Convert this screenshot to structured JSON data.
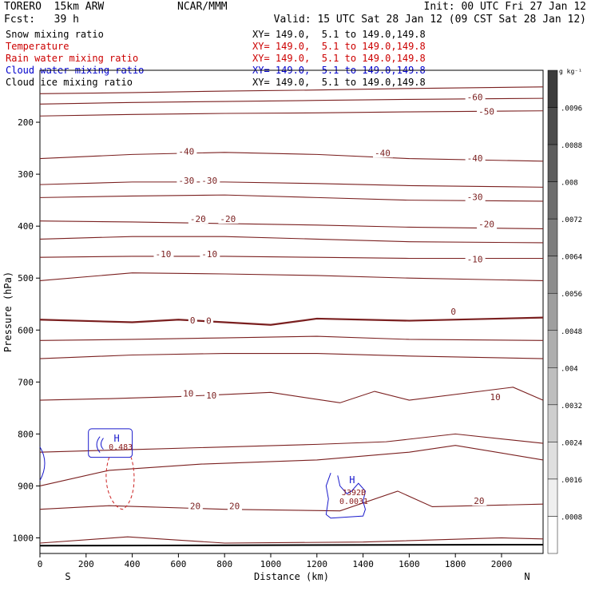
{
  "header": {
    "model": "TORERO  15km ARW",
    "center": "NCAR/MMM",
    "init": "Init: 00 UTC Fri 27 Jan 12",
    "fcst": "Fcst:   39 h",
    "valid": "Valid: 15 UTC Sat 28 Jan 12 (09 CST Sat 28 Jan 12)"
  },
  "legend": [
    {
      "name": "Snow mixing ratio",
      "color": "#000000",
      "xy": "XY= 149.0,  5.1 to 149.0,149.8"
    },
    {
      "name": "Temperature",
      "color": "#cc0000",
      "xy": "XY= 149.0,  5.1 to 149.0,149.8"
    },
    {
      "name": "Rain water mixing ratio",
      "color": "#cc0000",
      "xy": "XY= 149.0,  5.1 to 149.0,149.8"
    },
    {
      "name": "Cloud water mixing ratio",
      "color": "#0000cc",
      "xy": "XY= 149.0,  5.1 to 149.0,149.8"
    },
    {
      "name": "Cloud ice mixing ratio",
      "color": "#000000",
      "xy": "XY= 149.0,  5.1 to 149.0,149.8"
    }
  ],
  "chart_data": {
    "type": "line",
    "xlabel": "Distance (km)",
    "ylabel": "Pressure (hPa)",
    "xlim": [
      0,
      2180
    ],
    "ylim": [
      1030,
      100
    ],
    "x_ticks": [
      0,
      200,
      400,
      600,
      800,
      1000,
      1200,
      1400,
      1600,
      1800,
      2000
    ],
    "y_ticks": [
      200,
      300,
      400,
      500,
      600,
      700,
      800,
      900,
      1000
    ],
    "end_labels": {
      "left": "S",
      "right": "N"
    },
    "colorbar": {
      "unit": "g kg⁻¹",
      "ticks": [
        ".0096",
        ".0088",
        ".008",
        ".0072",
        ".0064",
        ".0056",
        ".0048",
        ".004",
        ".0032",
        ".0024",
        ".0016",
        ".0008"
      ]
    },
    "isotherms": [
      {
        "temp": -60,
        "x": [
          0,
          400,
          800,
          1200,
          1600,
          2180
        ],
        "p": [
          145,
          143,
          140,
          138,
          135,
          132
        ]
      },
      {
        "temp": -50,
        "x": [
          0,
          400,
          800,
          1200,
          1600,
          2180
        ],
        "p": [
          165,
          162,
          160,
          158,
          156,
          154
        ]
      },
      {
        "temp": -50,
        "x": [
          0,
          400,
          800,
          1200,
          1600,
          2180
        ],
        "p": [
          188,
          185,
          183,
          182,
          180,
          178
        ]
      },
      {
        "temp": -40,
        "x": [
          0,
          400,
          800,
          1200,
          1600,
          2180
        ],
        "p": [
          270,
          262,
          258,
          262,
          270,
          275
        ]
      },
      {
        "temp": -30,
        "x": [
          0,
          400,
          800,
          1200,
          1600,
          2180
        ],
        "p": [
          320,
          315,
          315,
          318,
          322,
          325
        ]
      },
      {
        "temp": -30,
        "x": [
          0,
          400,
          800,
          1200,
          1600,
          2180
        ],
        "p": [
          345,
          342,
          340,
          345,
          350,
          352
        ]
      },
      {
        "temp": -20,
        "x": [
          0,
          400,
          800,
          1200,
          1600,
          2180
        ],
        "p": [
          390,
          392,
          395,
          398,
          402,
          405
        ]
      },
      {
        "temp": -20,
        "x": [
          0,
          400,
          800,
          1200,
          1600,
          2180
        ],
        "p": [
          425,
          420,
          420,
          425,
          430,
          432
        ]
      },
      {
        "temp": -10,
        "x": [
          0,
          400,
          800,
          1200,
          1600,
          2180
        ],
        "p": [
          460,
          458,
          458,
          460,
          462,
          462
        ]
      },
      {
        "temp": -10,
        "x": [
          0,
          400,
          800,
          1200,
          1600,
          2180
        ],
        "p": [
          505,
          490,
          492,
          495,
          500,
          505
        ]
      },
      {
        "temp": 0,
        "x": [
          0,
          400,
          600,
          1000,
          1200,
          1600,
          2180
        ],
        "p": [
          580,
          585,
          580,
          590,
          578,
          582,
          576
        ]
      },
      {
        "temp": 0,
        "x": [
          0,
          400,
          800,
          1200,
          1600,
          2180
        ],
        "p": [
          620,
          618,
          615,
          612,
          618,
          620
        ]
      },
      {
        "temp": 0,
        "x": [
          0,
          400,
          800,
          1200,
          1600,
          2180
        ],
        "p": [
          655,
          648,
          645,
          645,
          650,
          655
        ]
      },
      {
        "temp": 10,
        "x": [
          0,
          300,
          600,
          1000,
          1300,
          1450,
          1600,
          2050,
          2180
        ],
        "p": [
          735,
          732,
          728,
          720,
          740,
          718,
          735,
          710,
          735
        ]
      },
      {
        "temp": 10,
        "x": [
          0,
          400,
          800,
          1200,
          1500,
          1800,
          2180
        ],
        "p": [
          835,
          830,
          825,
          820,
          815,
          800,
          818
        ]
      },
      {
        "temp": 20,
        "x": [
          0,
          300,
          700,
          1200,
          1600,
          1800,
          2180
        ],
        "p": [
          900,
          870,
          858,
          850,
          835,
          822,
          850
        ]
      },
      {
        "temp": 20,
        "x": [
          0,
          300,
          800,
          1300,
          1550,
          1700,
          2180
        ],
        "p": [
          945,
          938,
          945,
          948,
          910,
          940,
          935
        ]
      },
      {
        "temp": 20,
        "x": [
          0,
          380,
          800,
          1400,
          2000,
          2180
        ],
        "p": [
          1010,
          998,
          1010,
          1008,
          1000,
          1002
        ]
      }
    ],
    "cloud_water_centers": [
      {
        "x": 320,
        "p": 815,
        "label": "H"
      },
      {
        "x": 1340,
        "p": 895,
        "label": "H"
      }
    ],
    "center_values": [
      {
        "x": 350,
        "p": 830,
        "label": "0.483"
      },
      {
        "x": 1360,
        "p": 918,
        "label": "J392B"
      },
      {
        "x": 1360,
        "p": 935,
        "label": "0.0031"
      }
    ],
    "plot_labels": [
      {
        "x": 1850,
        "p": 158,
        "text": "-60"
      },
      {
        "x": 1900,
        "p": 185,
        "text": "-50"
      },
      {
        "x": 600,
        "p": 262,
        "text": "-40"
      },
      {
        "x": 1450,
        "p": 265,
        "text": "-40"
      },
      {
        "x": 1850,
        "p": 275,
        "text": "-40"
      },
      {
        "x": 600,
        "p": 318,
        "text": "-30"
      },
      {
        "x": 700,
        "p": 318,
        "text": "-30"
      },
      {
        "x": 1850,
        "p": 350,
        "text": "-30"
      },
      {
        "x": 650,
        "p": 392,
        "text": "-20"
      },
      {
        "x": 780,
        "p": 392,
        "text": "-20"
      },
      {
        "x": 1900,
        "p": 402,
        "text": "-20"
      },
      {
        "x": 500,
        "p": 460,
        "text": "-10"
      },
      {
        "x": 700,
        "p": 460,
        "text": "-10"
      },
      {
        "x": 1850,
        "p": 470,
        "text": "-10"
      },
      {
        "x": 650,
        "p": 587,
        "text": "0"
      },
      {
        "x": 720,
        "p": 588,
        "text": "0"
      },
      {
        "x": 1780,
        "p": 570,
        "text": "0"
      },
      {
        "x": 620,
        "p": 728,
        "text": "10"
      },
      {
        "x": 720,
        "p": 732,
        "text": "10"
      },
      {
        "x": 1950,
        "p": 735,
        "text": "10"
      },
      {
        "x": 650,
        "p": 945,
        "text": "20"
      },
      {
        "x": 820,
        "p": 945,
        "text": "20"
      },
      {
        "x": 1880,
        "p": 935,
        "text": "20"
      }
    ]
  }
}
